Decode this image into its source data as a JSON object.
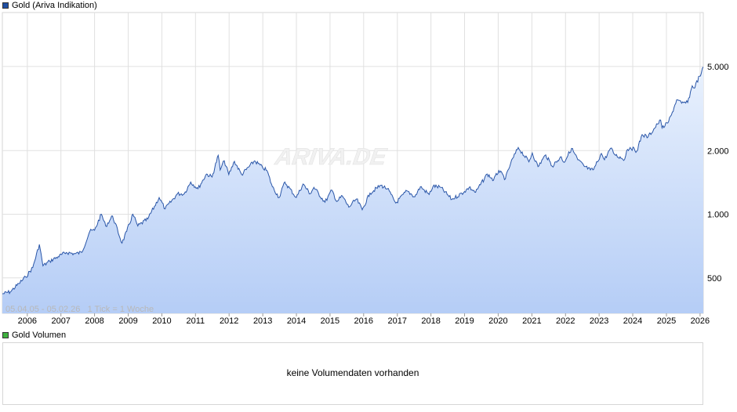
{
  "legend": {
    "price_label": "Gold (Ariva Indikation)",
    "price_color": "#1f4fa3",
    "volume_label": "Gold Volumen",
    "volume_color": "#3fb13f"
  },
  "watermark": "ARIVA.DE",
  "footer_note": "05.04.05 - 05.02.26   1 Tick = 1 Woche",
  "volume": {
    "empty_message": "keine Volumendaten vorhanden"
  },
  "chart_data": {
    "type": "area",
    "title": "Gold (Ariva Indikation)",
    "y_scale": "log",
    "ylim": [
      340,
      9000
    ],
    "yticks": [
      500,
      1000,
      2000,
      5000
    ],
    "ytick_labels": [
      "500",
      "1.000",
      "2.000",
      "5.000"
    ],
    "xlim": [
      "2005-04-05",
      "2026-02-05"
    ],
    "xticks": [
      "2006",
      "2007",
      "2008",
      "2009",
      "2010",
      "2011",
      "2012",
      "2013",
      "2014",
      "2015",
      "2016",
      "2017",
      "2018",
      "2019",
      "2020",
      "2021",
      "2022",
      "2023",
      "2024",
      "2025",
      "2026"
    ],
    "grid": true,
    "line_color": "#2a56a8",
    "fill_top": "#e9f1fd",
    "fill_bottom": "#b5cdf6",
    "series": [
      {
        "name": "Gold (Ariva Indikation)",
        "points": [
          [
            "2005-04-05",
            420
          ],
          [
            "2005-07-01",
            430
          ],
          [
            "2005-10-01",
            470
          ],
          [
            "2005-12-15",
            505
          ],
          [
            "2006-03-01",
            560
          ],
          [
            "2006-05-12",
            720
          ],
          [
            "2006-06-20",
            570
          ],
          [
            "2006-09-01",
            600
          ],
          [
            "2006-12-01",
            630
          ],
          [
            "2007-03-01",
            660
          ],
          [
            "2007-06-01",
            650
          ],
          [
            "2007-08-15",
            660
          ],
          [
            "2007-11-10",
            830
          ],
          [
            "2008-01-01",
            840
          ],
          [
            "2008-03-15",
            1000
          ],
          [
            "2008-05-01",
            880
          ],
          [
            "2008-07-15",
            980
          ],
          [
            "2008-10-25",
            730
          ],
          [
            "2008-12-15",
            830
          ],
          [
            "2009-02-20",
            1000
          ],
          [
            "2009-04-15",
            880
          ],
          [
            "2009-08-01",
            950
          ],
          [
            "2009-12-03",
            1200
          ],
          [
            "2010-02-05",
            1060
          ],
          [
            "2010-06-20",
            1250
          ],
          [
            "2010-09-01",
            1250
          ],
          [
            "2010-11-10",
            1420
          ],
          [
            "2011-01-28",
            1320
          ],
          [
            "2011-04-30",
            1550
          ],
          [
            "2011-06-30",
            1500
          ],
          [
            "2011-09-05",
            1900
          ],
          [
            "2011-09-26",
            1620
          ],
          [
            "2011-11-10",
            1790
          ],
          [
            "2011-12-29",
            1540
          ],
          [
            "2012-02-28",
            1780
          ],
          [
            "2012-05-16",
            1540
          ],
          [
            "2012-10-05",
            1790
          ],
          [
            "2012-12-31",
            1660
          ],
          [
            "2013-02-15",
            1610
          ],
          [
            "2013-04-15",
            1350
          ],
          [
            "2013-06-28",
            1200
          ],
          [
            "2013-08-28",
            1420
          ],
          [
            "2013-12-31",
            1200
          ],
          [
            "2014-03-14",
            1390
          ],
          [
            "2014-05-30",
            1250
          ],
          [
            "2014-07-10",
            1340
          ],
          [
            "2014-11-07",
            1140
          ],
          [
            "2015-01-22",
            1300
          ],
          [
            "2015-03-15",
            1150
          ],
          [
            "2015-05-15",
            1220
          ],
          [
            "2015-07-24",
            1080
          ],
          [
            "2015-10-15",
            1180
          ],
          [
            "2015-12-17",
            1050
          ],
          [
            "2016-03-10",
            1260
          ],
          [
            "2016-07-06",
            1370
          ],
          [
            "2016-09-15",
            1320
          ],
          [
            "2016-12-15",
            1130
          ],
          [
            "2017-04-15",
            1290
          ],
          [
            "2017-07-10",
            1210
          ],
          [
            "2017-09-08",
            1350
          ],
          [
            "2017-12-12",
            1240
          ],
          [
            "2018-01-25",
            1360
          ],
          [
            "2018-04-15",
            1340
          ],
          [
            "2018-08-16",
            1175
          ],
          [
            "2018-12-31",
            1280
          ],
          [
            "2019-02-20",
            1340
          ],
          [
            "2019-05-01",
            1270
          ],
          [
            "2019-09-04",
            1550
          ],
          [
            "2019-11-12",
            1450
          ],
          [
            "2020-01-08",
            1610
          ],
          [
            "2020-03-19",
            1470
          ],
          [
            "2020-05-15",
            1740
          ],
          [
            "2020-08-06",
            2070
          ],
          [
            "2020-11-30",
            1770
          ],
          [
            "2021-01-05",
            1950
          ],
          [
            "2021-03-08",
            1680
          ],
          [
            "2021-05-31",
            1910
          ],
          [
            "2021-08-09",
            1690
          ],
          [
            "2021-11-16",
            1870
          ],
          [
            "2021-12-15",
            1760
          ],
          [
            "2022-03-08",
            2050
          ],
          [
            "2022-05-15",
            1810
          ],
          [
            "2022-07-21",
            1690
          ],
          [
            "2022-09-28",
            1620
          ],
          [
            "2022-11-03",
            1630
          ],
          [
            "2023-01-25",
            1940
          ],
          [
            "2023-02-28",
            1810
          ],
          [
            "2023-05-04",
            2050
          ],
          [
            "2023-06-29",
            1900
          ],
          [
            "2023-10-05",
            1820
          ],
          [
            "2023-10-27",
            2000
          ],
          [
            "2023-12-04",
            2070
          ],
          [
            "2024-02-14",
            1990
          ],
          [
            "2024-04-12",
            2380
          ],
          [
            "2024-06-15",
            2320
          ],
          [
            "2024-09-26",
            2670
          ],
          [
            "2024-10-30",
            2790
          ],
          [
            "2024-11-14",
            2560
          ],
          [
            "2025-01-15",
            2700
          ],
          [
            "2025-02-24",
            2950
          ],
          [
            "2025-04-22",
            3480
          ],
          [
            "2025-06-15",
            3350
          ],
          [
            "2025-08-20",
            3380
          ],
          [
            "2025-10-08",
            4050
          ],
          [
            "2025-10-28",
            3950
          ],
          [
            "2025-12-26",
            4500
          ],
          [
            "2026-01-15",
            4650
          ],
          [
            "2026-02-05",
            4980
          ]
        ]
      }
    ]
  }
}
